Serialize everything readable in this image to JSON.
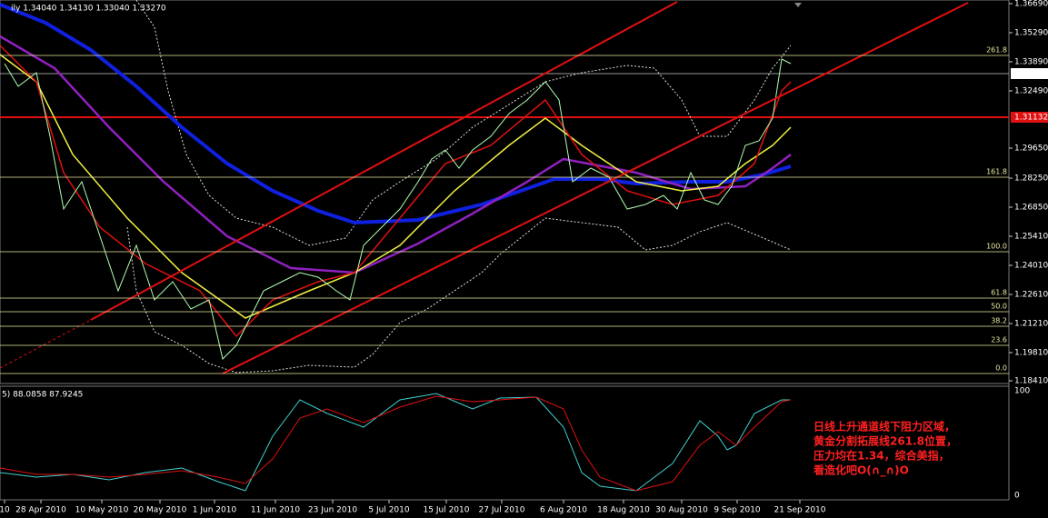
{
  "header": {
    "quote": "ily  1.34040 1.34130 1.33040 1.33270"
  },
  "price_axis": [
    "1.36690",
    "1.35290",
    "1.33890",
    "1.32490",
    "1.29650",
    "1.28250",
    "1.26850",
    "1.25410",
    "1.24010",
    "1.22610",
    "1.21210",
    "1.19810",
    "1.18410"
  ],
  "current_price": "1.33270",
  "resistance_price": "1.31132",
  "fib_levels": [
    "261.8",
    "161.8",
    "100.0",
    "61.8",
    "50.0",
    "38.2",
    "23.6",
    "0.0"
  ],
  "oscillator": {
    "header": "5) 88.0858 87.9245",
    "axis": [
      "100",
      "0"
    ]
  },
  "dates": [
    "10",
    "28 Apr 2010",
    "10 May 2010",
    "20 May 2010",
    "1 Jun 2010",
    "11 Jun 2010",
    "23 Jun 2010",
    "5 Jul 2010",
    "15 Jul 2010",
    "27 Jul 2010",
    "6 Aug 2010",
    "18 Aug 2010",
    "30 Aug 2010",
    "9 Sep 2010",
    "21 Sep 2010"
  ],
  "annotation": [
    "日线上升通道线下阻力区域，",
    "黄金分割拓展线261.8位置，",
    "压力均在1.34，综合美指，",
    "看造化吧O(∩_∩)O"
  ]
}
